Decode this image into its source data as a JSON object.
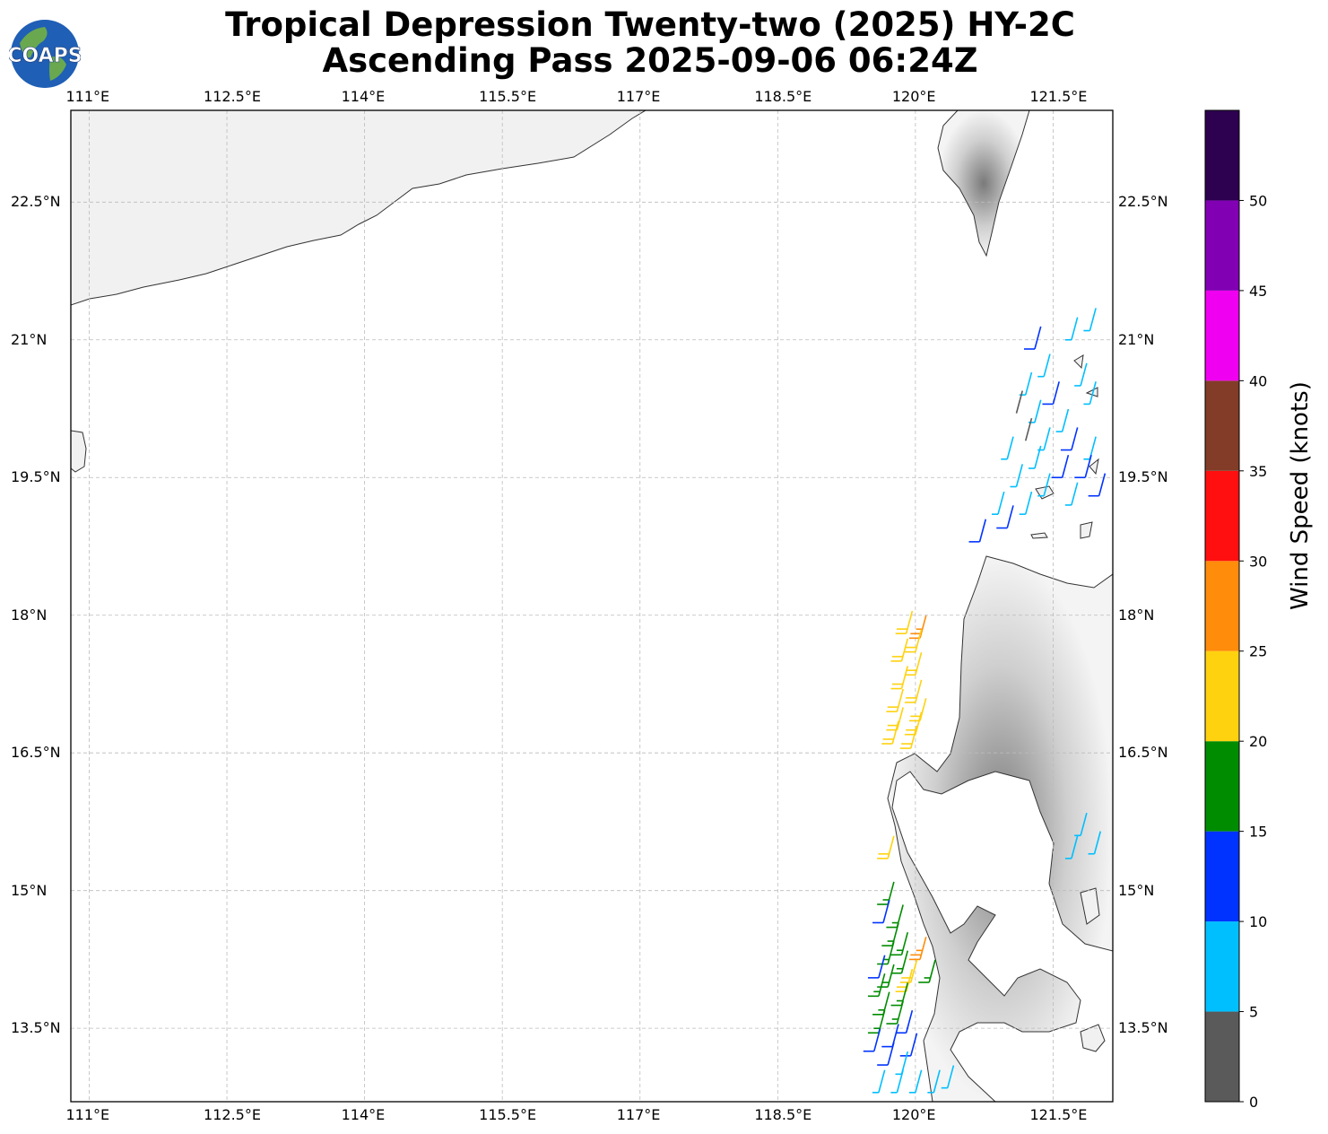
{
  "title": {
    "line1": "Tropical Depression Twenty-two (2025) HY-2C",
    "line2": "Ascending Pass 2025-09-06 06:24Z"
  },
  "logo": {
    "text": "COAPS",
    "colors": {
      "ocean": "#1f5fb5",
      "land": "#6aa84f",
      "text": "#ffffff"
    }
  },
  "map": {
    "lon_range": [
      110.8,
      122.15
    ],
    "lat_range": [
      12.7,
      23.5
    ],
    "lon_ticks": [
      "111°E",
      "112.5°E",
      "114°E",
      "115.5°E",
      "117°E",
      "118.5°E",
      "120°E",
      "121.5°E"
    ],
    "lat_ticks": [
      "22.5°N",
      "21°N",
      "19.5°N",
      "18°N",
      "16.5°N",
      "15°N",
      "13.5°N"
    ],
    "gridlines": true
  },
  "colorbar": {
    "label": "Wind Speed (knots)",
    "ticks": [
      "0",
      "5",
      "10",
      "15",
      "20",
      "25",
      "30",
      "35",
      "40",
      "45",
      "50"
    ],
    "bins": [
      {
        "min": 0,
        "max": 5,
        "color": "#5a5a5a"
      },
      {
        "min": 5,
        "max": 10,
        "color": "#00bfff"
      },
      {
        "min": 10,
        "max": 15,
        "color": "#0033ff"
      },
      {
        "min": 15,
        "max": 20,
        "color": "#008c00"
      },
      {
        "min": 20,
        "max": 25,
        "color": "#ffd20f"
      },
      {
        "min": 25,
        "max": 30,
        "color": "#ff8c0a"
      },
      {
        "min": 30,
        "max": 35,
        "color": "#ff0f0f"
      },
      {
        "min": 35,
        "max": 40,
        "color": "#823c28"
      },
      {
        "min": 40,
        "max": 45,
        "color": "#f000f0"
      },
      {
        "min": 45,
        "max": 50,
        "color": "#8200b4"
      },
      {
        "min": 50,
        "max": 55,
        "color": "#2d0050"
      }
    ]
  },
  "wind_barbs": [
    {
      "lon": 121.3,
      "lat": 20.9,
      "speed": 12
    },
    {
      "lon": 121.7,
      "lat": 21.0,
      "speed": 8
    },
    {
      "lon": 121.9,
      "lat": 21.1,
      "speed": 8
    },
    {
      "lon": 121.4,
      "lat": 20.6,
      "speed": 8
    },
    {
      "lon": 121.8,
      "lat": 20.5,
      "speed": 7
    },
    {
      "lon": 121.2,
      "lat": 20.4,
      "speed": 8
    },
    {
      "lon": 121.5,
      "lat": 20.3,
      "speed": 12
    },
    {
      "lon": 121.9,
      "lat": 20.3,
      "speed": 7
    },
    {
      "lon": 121.1,
      "lat": 20.2,
      "speed": 4
    },
    {
      "lon": 121.3,
      "lat": 20.1,
      "speed": 7
    },
    {
      "lon": 121.6,
      "lat": 20.0,
      "speed": 8
    },
    {
      "lon": 121.2,
      "lat": 19.9,
      "speed": 4
    },
    {
      "lon": 121.4,
      "lat": 19.8,
      "speed": 8
    },
    {
      "lon": 121.7,
      "lat": 19.8,
      "speed": 11
    },
    {
      "lon": 121.9,
      "lat": 19.7,
      "speed": 8
    },
    {
      "lon": 121.0,
      "lat": 19.7,
      "speed": 8
    },
    {
      "lon": 121.3,
      "lat": 19.6,
      "speed": 7
    },
    {
      "lon": 121.6,
      "lat": 19.5,
      "speed": 12
    },
    {
      "lon": 121.85,
      "lat": 19.5,
      "speed": 12
    },
    {
      "lon": 121.1,
      "lat": 19.4,
      "speed": 8
    },
    {
      "lon": 121.4,
      "lat": 19.3,
      "speed": 7
    },
    {
      "lon": 121.7,
      "lat": 19.2,
      "speed": 8
    },
    {
      "lon": 122.0,
      "lat": 19.3,
      "speed": 12
    },
    {
      "lon": 120.9,
      "lat": 19.1,
      "speed": 8
    },
    {
      "lon": 121.2,
      "lat": 19.1,
      "speed": 7
    },
    {
      "lon": 121.0,
      "lat": 18.95,
      "speed": 12
    },
    {
      "lon": 120.7,
      "lat": 18.8,
      "speed": 12
    },
    {
      "lon": 119.9,
      "lat": 17.8,
      "speed": 22
    },
    {
      "lon": 120.05,
      "lat": 17.75,
      "speed": 27
    },
    {
      "lon": 120.0,
      "lat": 17.6,
      "speed": 22
    },
    {
      "lon": 119.85,
      "lat": 17.5,
      "speed": 22
    },
    {
      "lon": 120.0,
      "lat": 17.35,
      "speed": 22
    },
    {
      "lon": 119.85,
      "lat": 17.2,
      "speed": 22
    },
    {
      "lon": 120.0,
      "lat": 17.05,
      "speed": 22
    },
    {
      "lon": 119.8,
      "lat": 16.95,
      "speed": 22
    },
    {
      "lon": 120.05,
      "lat": 16.85,
      "speed": 22
    },
    {
      "lon": 119.8,
      "lat": 16.75,
      "speed": 22
    },
    {
      "lon": 120.0,
      "lat": 16.7,
      "speed": 22
    },
    {
      "lon": 119.75,
      "lat": 16.6,
      "speed": 22
    },
    {
      "lon": 119.95,
      "lat": 16.55,
      "speed": 22
    },
    {
      "lon": 119.7,
      "lat": 15.35,
      "speed": 22
    },
    {
      "lon": 119.7,
      "lat": 14.85,
      "speed": 17
    },
    {
      "lon": 119.65,
      "lat": 14.65,
      "speed": 12
    },
    {
      "lon": 119.8,
      "lat": 14.6,
      "speed": 17
    },
    {
      "lon": 119.75,
      "lat": 14.4,
      "speed": 17
    },
    {
      "lon": 119.85,
      "lat": 14.3,
      "speed": 17
    },
    {
      "lon": 120.05,
      "lat": 14.25,
      "speed": 27
    },
    {
      "lon": 119.7,
      "lat": 14.2,
      "speed": 17
    },
    {
      "lon": 119.85,
      "lat": 14.1,
      "speed": 17
    },
    {
      "lon": 119.6,
      "lat": 14.05,
      "speed": 12
    },
    {
      "lon": 119.95,
      "lat": 14.0,
      "speed": 22
    },
    {
      "lon": 120.15,
      "lat": 14.0,
      "speed": 17
    },
    {
      "lon": 119.7,
      "lat": 13.95,
      "speed": 17
    },
    {
      "lon": 119.9,
      "lat": 13.9,
      "speed": 22
    },
    {
      "lon": 119.6,
      "lat": 13.85,
      "speed": 17
    },
    {
      "lon": 119.85,
      "lat": 13.75,
      "speed": 17
    },
    {
      "lon": 119.65,
      "lat": 13.65,
      "speed": 17
    },
    {
      "lon": 119.8,
      "lat": 13.55,
      "speed": 17
    },
    {
      "lon": 119.6,
      "lat": 13.45,
      "speed": 17
    },
    {
      "lon": 119.9,
      "lat": 13.45,
      "speed": 12
    },
    {
      "lon": 119.75,
      "lat": 13.3,
      "speed": 12
    },
    {
      "lon": 119.55,
      "lat": 13.25,
      "speed": 12
    },
    {
      "lon": 119.95,
      "lat": 13.2,
      "speed": 12
    },
    {
      "lon": 119.7,
      "lat": 13.1,
      "speed": 12
    },
    {
      "lon": 119.85,
      "lat": 13.0,
      "speed": 7
    },
    {
      "lon": 119.6,
      "lat": 12.8,
      "speed": 7
    },
    {
      "lon": 119.8,
      "lat": 12.8,
      "speed": 7
    },
    {
      "lon": 120.0,
      "lat": 12.8,
      "speed": 7
    },
    {
      "lon": 120.2,
      "lat": 12.8,
      "speed": 7
    },
    {
      "lon": 120.35,
      "lat": 12.85,
      "speed": 7
    },
    {
      "lon": 121.8,
      "lat": 15.6,
      "speed": 8
    },
    {
      "lon": 121.95,
      "lat": 15.4,
      "speed": 8
    },
    {
      "lon": 121.7,
      "lat": 15.35,
      "speed": 8
    }
  ]
}
